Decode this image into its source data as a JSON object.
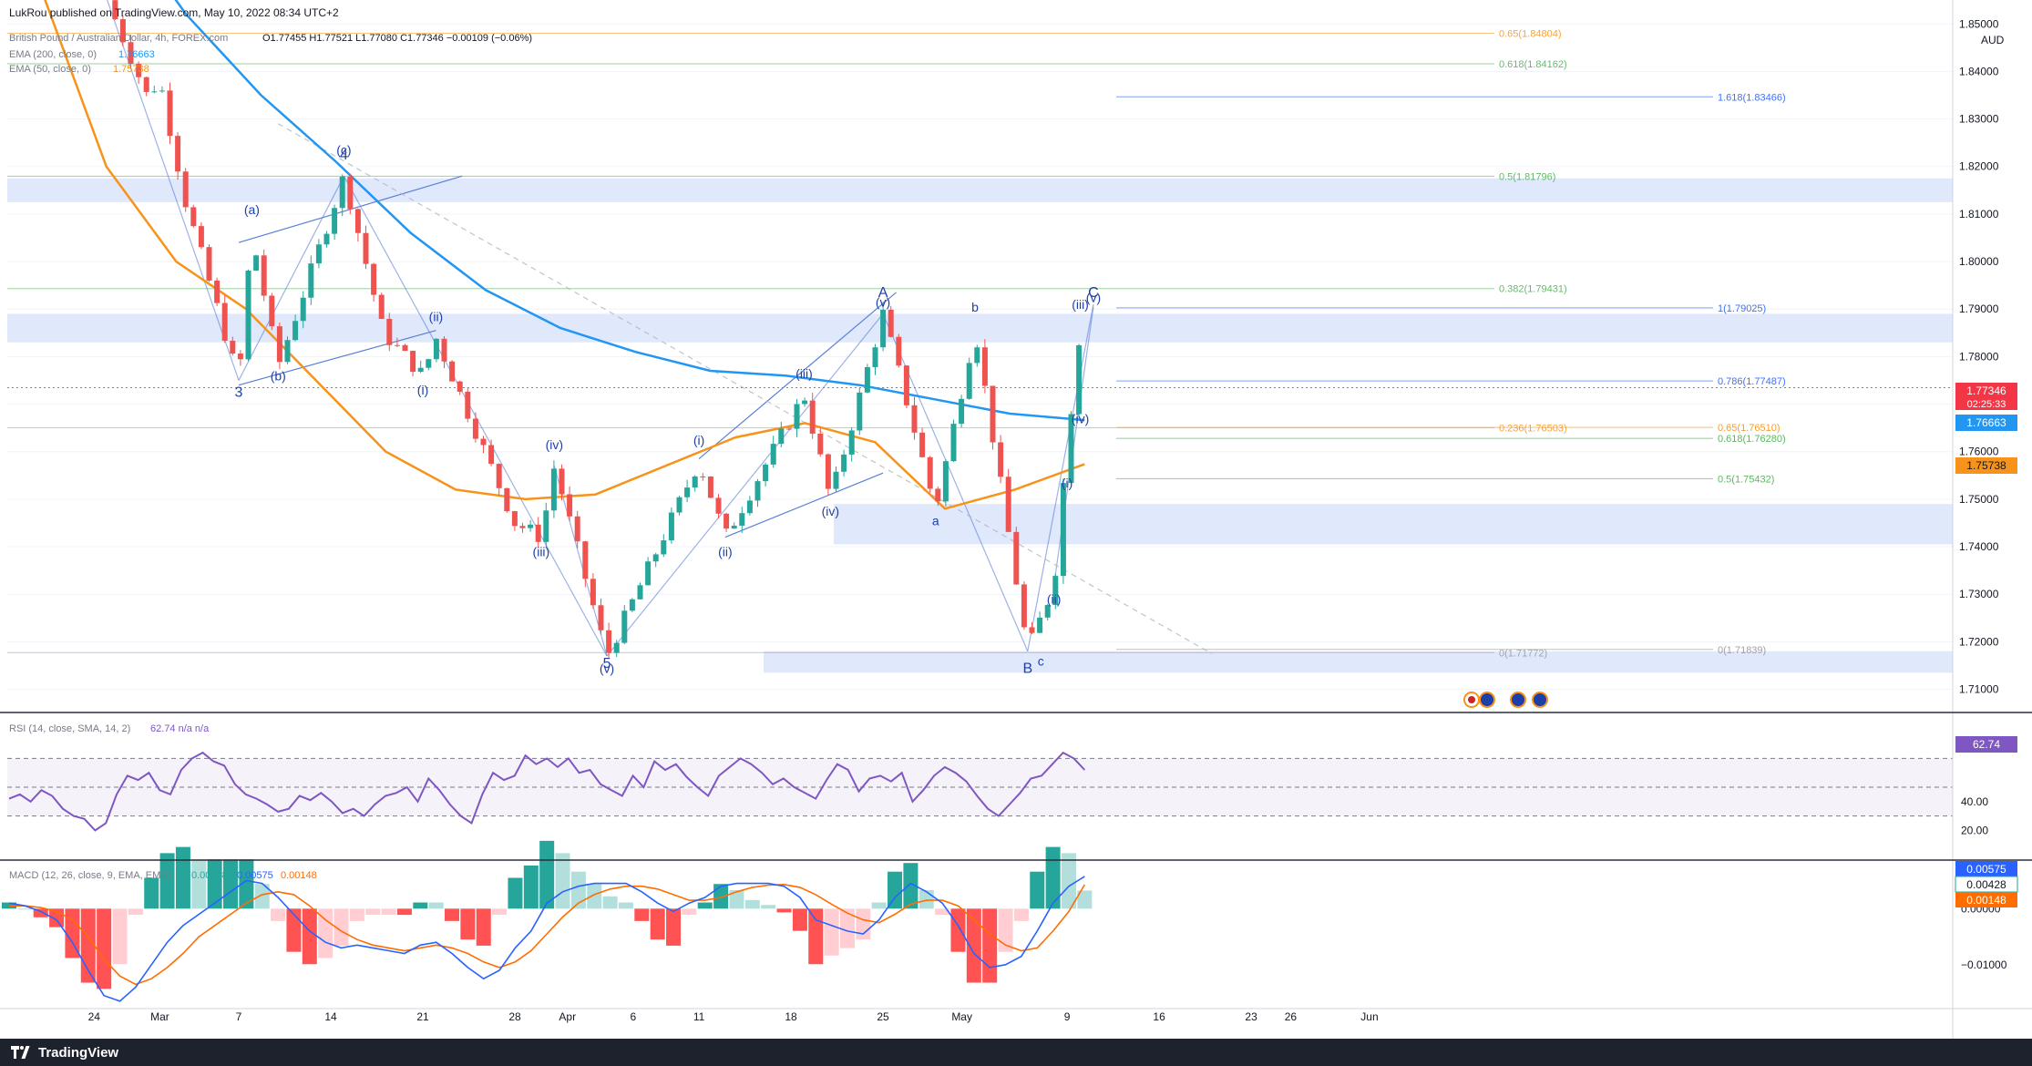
{
  "header": {
    "published_by": "LukRou published on TradingView.com, May 10, 2022 08:34 UTC+2",
    "symbol": "British Pound / Australian Dollar, 4h, FOREX.com",
    "ohlc": "O1.77455 H1.77521 L1.77080 C1.77346 −0.00109 (−0.06%)",
    "ema200_label": "EMA (200, close, 0)",
    "ema200_value": "1.76663",
    "ema50_label": "EMA (50, close, 0)",
    "ema50_value": "1.75738",
    "currency": "AUD",
    "price_tag": "1.77346",
    "countdown": "02:25:33"
  },
  "colors": {
    "ema200": "#2196f3",
    "ema50": "#f7931a",
    "up": "#26a69a",
    "down": "#ef5350",
    "zone": "#dbe4fb",
    "rsi": "#7e57c2",
    "macd": "#2962ff",
    "signal": "#ff6d00",
    "wave_label": "#1e3fa8"
  },
  "chart_data": [
    {
      "type": "candlestick",
      "title": "British Pound / Australian Dollar, 4h",
      "x_ticks": [
        "24",
        "Mar",
        "7",
        "14",
        "21",
        "28",
        "Apr",
        "6",
        "11",
        "18",
        "25",
        "May",
        "9",
        "16",
        "23",
        "26",
        "Jun"
      ],
      "y_ticks": [
        "1.85000",
        "1.84000",
        "1.83000",
        "1.82000",
        "1.81000",
        "1.80000",
        "1.79000",
        "1.78000",
        "1.77000",
        "1.76000",
        "1.75000",
        "1.74000",
        "1.73000",
        "1.72000",
        "1.71000"
      ],
      "ylim": [
        1.7055,
        1.8535
      ],
      "last_close": 1.77346,
      "price_path": [
        {
          "date": "Feb 25",
          "price": 1.855
        },
        {
          "date": "Feb 28",
          "price": 1.835
        },
        {
          "date": "Mar 1",
          "price": 1.838
        },
        {
          "date": "Mar 3",
          "price": 1.812
        },
        {
          "date": "Mar 7",
          "price": 1.775
        },
        {
          "date": "Mar 8",
          "price": 1.806
        },
        {
          "date": "Mar 10",
          "price": 1.778
        },
        {
          "date": "Mar 15",
          "price": 1.818
        },
        {
          "date": "Mar 18",
          "price": 1.785
        },
        {
          "date": "Mar 21",
          "price": 1.776
        },
        {
          "date": "Mar 22",
          "price": 1.784
        },
        {
          "date": "Mar 28",
          "price": 1.745
        },
        {
          "date": "Mar 30",
          "price": 1.742
        },
        {
          "date": "Mar 31",
          "price": 1.757
        },
        {
          "date": "Apr 4",
          "price": 1.717
        },
        {
          "date": "Apr 11",
          "price": 1.758
        },
        {
          "date": "Apr 13",
          "price": 1.742
        },
        {
          "date": "Apr 19",
          "price": 1.772
        },
        {
          "date": "Apr 21",
          "price": 1.75
        },
        {
          "date": "Apr 25",
          "price": 1.789
        },
        {
          "date": "Apr 29",
          "price": 1.748
        },
        {
          "date": "May 2",
          "price": 1.786
        },
        {
          "date": "May 6",
          "price": 1.718
        },
        {
          "date": "May 8",
          "price": 1.732
        },
        {
          "date": "May 9",
          "price": 1.762
        },
        {
          "date": "May 10",
          "price": 1.786
        },
        {
          "date": "May 10 08:00",
          "price": 1.77346
        }
      ],
      "ema200": [
        1.895,
        1.874,
        1.852,
        1.835,
        1.821,
        1.806,
        1.794,
        1.786,
        1.781,
        1.777,
        1.776,
        1.774,
        1.771,
        1.768,
        1.76663
      ],
      "ema50": [
        1.86,
        1.82,
        1.8,
        1.79,
        1.775,
        1.76,
        1.752,
        1.75,
        1.751,
        1.757,
        1.763,
        1.766,
        1.762,
        1.748,
        1.752,
        1.75738
      ],
      "fib_left": [
        {
          "label": "0.65(1.84804)",
          "price": 1.84804
        },
        {
          "label": "0.618(1.84162)",
          "price": 1.84162
        },
        {
          "label": "0.5(1.81796)",
          "price": 1.81796
        },
        {
          "label": "0.382(1.79431)",
          "price": 1.79431
        },
        {
          "label": "0.236(1.76503)",
          "price": 1.76503
        },
        {
          "label": "0(1.71772)",
          "price": 1.71772
        }
      ],
      "fib_right": [
        {
          "label": "1.618(1.83466)",
          "price": 1.83466
        },
        {
          "label": "1(1.79025)",
          "price": 1.79025
        },
        {
          "label": "0.786(1.77487)",
          "price": 1.77487
        },
        {
          "label": "0.65(1.76510)",
          "price": 1.7651
        },
        {
          "label": "0.618(1.76280)",
          "price": 1.7628
        },
        {
          "label": "0.5(1.75432)",
          "price": 1.75432
        },
        {
          "label": "0(1.71839)",
          "price": 1.71839
        }
      ],
      "zones": [
        {
          "from": 1.8125,
          "to": 1.8175
        },
        {
          "from": 1.783,
          "to": 1.789
        },
        {
          "from": 1.7405,
          "to": 1.749
        },
        {
          "from": 1.7135,
          "to": 1.718
        }
      ],
      "wave_labels": [
        {
          "text": "3",
          "date": "Mar 7",
          "price": 1.7715
        },
        {
          "text": "(a)",
          "date": "Mar 8",
          "price": 1.81
        },
        {
          "text": "(b)",
          "date": "Mar 10",
          "price": 1.775
        },
        {
          "text": "4",
          "date": "Mar 15",
          "price": 1.8215
        },
        {
          "text": "(c)",
          "date": "Mar 15",
          "price": 1.8225
        },
        {
          "text": "(ii)",
          "date": "Mar 22",
          "price": 1.7875
        },
        {
          "text": "(i)",
          "date": "Mar 21",
          "price": 1.772
        },
        {
          "text": "(iv)",
          "date": "Mar 31",
          "price": 1.7605
        },
        {
          "text": "(iii)",
          "date": "Mar 30",
          "price": 1.738
        },
        {
          "text": "5",
          "date": "Apr 4",
          "price": 1.7145
        },
        {
          "text": "(v)",
          "date": "Apr 4",
          "price": 1.7135
        },
        {
          "text": "(i)",
          "date": "Apr 11",
          "price": 1.7615
        },
        {
          "text": "(ii)",
          "date": "Apr 13",
          "price": 1.738
        },
        {
          "text": "(iii)",
          "date": "Apr 19",
          "price": 1.7755
        },
        {
          "text": "(iv)",
          "date": "Apr 21",
          "price": 1.7465
        },
        {
          "text": "A",
          "date": "Apr 25",
          "price": 1.7925
        },
        {
          "text": "(v)",
          "date": "Apr 25",
          "price": 1.7905
        },
        {
          "text": "b",
          "date": "May 2",
          "price": 1.7895
        },
        {
          "text": "a",
          "date": "Apr 29",
          "price": 1.7445
        },
        {
          "text": "(i)",
          "date": "May 9",
          "price": 1.7525
        },
        {
          "text": "(ii)",
          "date": "May 8",
          "price": 1.728
        },
        {
          "text": "B",
          "date": "May 6",
          "price": 1.7135
        },
        {
          "text": "c",
          "date": "May 7",
          "price": 1.715
        },
        {
          "text": "(iii)",
          "date": "May 10",
          "price": 1.79
        },
        {
          "text": "(iv)",
          "date": "May 10",
          "price": 1.766
        },
        {
          "text": "(v)",
          "date": "May 11",
          "price": 1.7915
        },
        {
          "text": "C",
          "date": "May 11",
          "price": 1.7925
        }
      ]
    },
    {
      "type": "line",
      "title": "RSI (14, close, SMA, 14, 2)",
      "legend_values": "62.74  n/a  n/a",
      "ylim": [
        0,
        100
      ],
      "y_ticks": [
        "40.00",
        "20.00"
      ],
      "bands": [
        70,
        50,
        30
      ],
      "last_value": "62.74",
      "values": [
        42,
        45,
        40,
        48,
        44,
        35,
        30,
        28,
        20,
        25,
        45,
        58,
        55,
        60,
        48,
        45,
        62,
        70,
        74,
        68,
        65,
        52,
        45,
        42,
        38,
        33,
        35,
        44,
        41,
        46,
        40,
        32,
        35,
        30,
        38,
        44,
        46,
        50,
        40,
        56,
        48,
        38,
        30,
        25,
        45,
        60,
        55,
        58,
        72,
        66,
        70,
        64,
        70,
        60,
        62,
        52,
        48,
        44,
        58,
        50,
        68,
        62,
        66,
        57,
        50,
        44,
        58,
        64,
        70,
        66,
        60,
        52,
        56,
        50,
        46,
        42,
        55,
        66,
        62,
        47,
        56,
        58,
        54,
        60,
        40,
        48,
        58,
        64,
        60,
        54,
        44,
        35,
        30,
        38,
        46,
        56,
        58,
        66,
        74,
        70,
        62
      ]
    },
    {
      "type": "bar+line",
      "title": "MACD (12, 26, close, 9, EMA, EMA)",
      "legend_values": [
        "0.00428",
        "0.00575",
        "0.00148"
      ],
      "y_ticks": [
        "0.00000",
        "−0.01000"
      ],
      "ylim": [
        -0.0175,
        0.0085
      ],
      "last_values": {
        "macd": "0.00575",
        "signal": "0.00428",
        "histogram": "0.00148"
      },
      "macd": [
        0.001,
        0.0005,
        -0.0005,
        -0.002,
        -0.006,
        -0.011,
        -0.0155,
        -0.0165,
        -0.014,
        -0.01,
        -0.006,
        -0.003,
        -0.001,
        0.001,
        0.003,
        0.005,
        0.0045,
        0.002,
        -0.001,
        -0.004,
        -0.006,
        -0.007,
        -0.0065,
        -0.007,
        -0.0075,
        -0.008,
        -0.0065,
        -0.006,
        -0.008,
        -0.0105,
        -0.0125,
        -0.011,
        -0.007,
        -0.004,
        0.001,
        0.003,
        0.004,
        0.0045,
        0.0045,
        0.0045,
        0.003,
        0.001,
        -0.0005,
        0.001,
        0.002,
        0.004,
        0.0045,
        0.0045,
        0.0045,
        0.004,
        0.002,
        -0.002,
        -0.003,
        -0.004,
        -0.0045,
        -0.002,
        0.002,
        0.0045,
        0.003,
        0.001,
        -0.003,
        -0.008,
        -0.0105,
        -0.01,
        -0.0085,
        -0.004,
        0.001,
        0.004,
        0.00575
      ],
      "signal": [
        0.0005,
        0.0005,
        0.0002,
        -0.0005,
        -0.002,
        -0.005,
        -0.009,
        -0.012,
        -0.0135,
        -0.0125,
        -0.0105,
        -0.008,
        -0.005,
        -0.003,
        -0.001,
        0.001,
        0.0025,
        0.003,
        0.0025,
        0.0005,
        -0.002,
        -0.004,
        -0.0055,
        -0.0065,
        -0.007,
        -0.0075,
        -0.007,
        -0.0065,
        -0.007,
        -0.008,
        -0.0095,
        -0.0105,
        -0.0095,
        -0.0075,
        -0.0045,
        -0.0015,
        0.001,
        0.0025,
        0.0035,
        0.004,
        0.004,
        0.0035,
        0.0025,
        0.0015,
        0.0015,
        0.002,
        0.003,
        0.0038,
        0.0042,
        0.0043,
        0.0038,
        0.0025,
        0.0008,
        -0.0008,
        -0.002,
        -0.0025,
        -0.001,
        0.0008,
        0.0015,
        0.0015,
        0.0005,
        -0.002,
        -0.0045,
        -0.0065,
        -0.0075,
        -0.007,
        -0.004,
        -0.0005,
        0.00428
      ]
    }
  ]
}
